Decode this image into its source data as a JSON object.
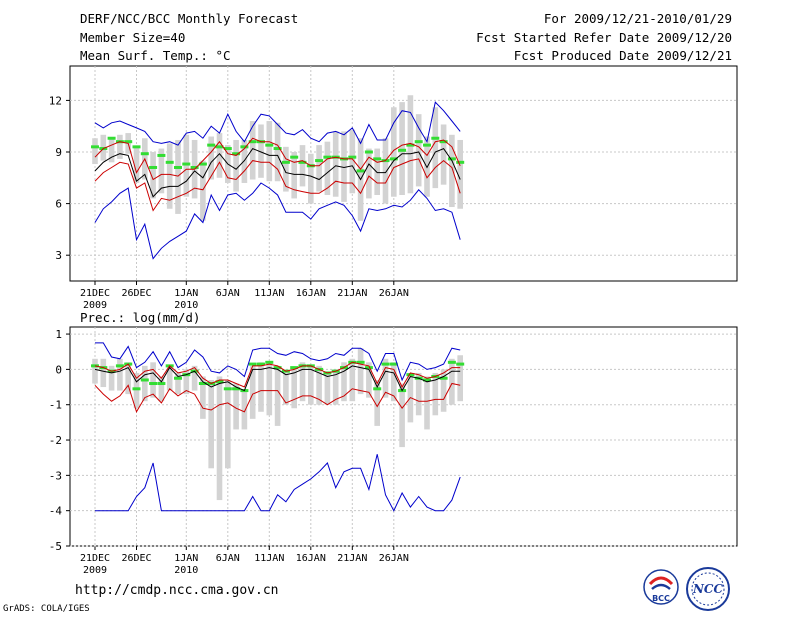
{
  "header": {
    "title": "DERF/NCC/BCC Monthly Forecast",
    "member_size": "Member Size=40",
    "variable_top": "Mean Surf. Temp.: °C",
    "forecast_for": "For 2009/12/21-2010/01/29",
    "started": "Fcst Started Refer Date 2009/12/20",
    "produced": "Fcst Produced Date 2009/12/21"
  },
  "footer": {
    "url": "http://cmdp.ncc.cma.gov.cn",
    "grads": "GrADS: COLA/IGES",
    "logo_bcc": "BCC",
    "logo_ncc": "NCC"
  },
  "colors": {
    "ensemble_max_min": "#0000cc",
    "ensemble_mean": "#000000",
    "ensemble_spread": "#cc0000",
    "member_range_bar": "#d3d3d3",
    "observed": "#33dd33"
  },
  "chart_data": [
    {
      "type": "line",
      "title": "Mean Surf. Temp.: °C",
      "ylim": [
        1.5,
        14
      ],
      "yticks": [
        3,
        6,
        9,
        12
      ],
      "ytick_labels": [
        "3",
        "6",
        "9",
        "12"
      ],
      "xtick_days": [
        0,
        5,
        11,
        16,
        21,
        26,
        31,
        36
      ],
      "xtick_labels": [
        "21DEC",
        "26DEC",
        "1JAN",
        "6JAN",
        "11JAN",
        "16JAN",
        "21JAN",
        "26JAN"
      ],
      "xtick_sublabels": [
        "2009",
        "",
        "2010",
        "",
        "",
        "",
        "",
        ""
      ],
      "series": [
        {
          "name": "max",
          "values": [
            10.7,
            10.4,
            10.7,
            10.8,
            10.6,
            10.4,
            10.2,
            9.6,
            9.5,
            9.6,
            9.4,
            10.1,
            10.2,
            9.8,
            10.5,
            10.1,
            11.2,
            10.2,
            9.6,
            10.5,
            11.2,
            11.1,
            10.6,
            10.1,
            10.0,
            10.3,
            9.8,
            9.6,
            10.1,
            10.2,
            10.0,
            10.4,
            9.5,
            10.6,
            9.7,
            9.7,
            10.7,
            11.4,
            11.3,
            10.4,
            9.6,
            11.9,
            11.4,
            10.8,
            10.2
          ]
        },
        {
          "name": "upper",
          "values": [
            8.7,
            9.2,
            9.4,
            9.6,
            9.5,
            7.8,
            8.6,
            7.4,
            7.7,
            7.7,
            7.6,
            8.0,
            8.0,
            8.5,
            9.0,
            9.6,
            8.9,
            8.8,
            9.2,
            9.8,
            9.6,
            9.6,
            9.4,
            8.6,
            8.4,
            8.5,
            8.2,
            8.2,
            8.6,
            8.7,
            8.6,
            8.6,
            8.0,
            8.7,
            8.4,
            8.5,
            9.1,
            9.4,
            9.5,
            9.3,
            8.8,
            9.6,
            9.7,
            9.3,
            8.2
          ]
        },
        {
          "name": "mean",
          "values": [
            7.9,
            8.4,
            8.7,
            8.9,
            8.8,
            7.3,
            7.7,
            6.4,
            6.9,
            7.0,
            7.0,
            7.3,
            7.9,
            7.5,
            8.4,
            8.9,
            8.3,
            8.0,
            8.5,
            9.2,
            9.0,
            8.8,
            8.8,
            7.8,
            7.7,
            7.7,
            7.6,
            7.4,
            7.8,
            8.2,
            8.1,
            8.2,
            7.4,
            8.3,
            7.8,
            7.8,
            8.5,
            8.9,
            8.9,
            9.0,
            8.1,
            9.0,
            9.2,
            8.5,
            7.4
          ]
        },
        {
          "name": "lower",
          "values": [
            7.3,
            7.8,
            8.1,
            8.4,
            8.3,
            6.9,
            7.2,
            5.6,
            6.3,
            6.2,
            6.4,
            6.6,
            6.9,
            6.8,
            7.6,
            8.4,
            7.5,
            7.4,
            7.9,
            8.5,
            8.4,
            8.4,
            8.0,
            7.0,
            6.8,
            6.7,
            6.6,
            6.6,
            6.9,
            7.3,
            7.2,
            7.2,
            6.6,
            7.6,
            7.2,
            7.2,
            8.1,
            8.3,
            8.5,
            8.6,
            7.5,
            8.1,
            8.5,
            8.1,
            6.6
          ]
        },
        {
          "name": "min",
          "values": [
            4.9,
            5.7,
            6.1,
            6.6,
            6.9,
            3.9,
            4.8,
            2.8,
            3.4,
            3.8,
            4.1,
            4.4,
            5.4,
            4.9,
            6.5,
            5.6,
            6.5,
            6.6,
            6.2,
            6.6,
            7.2,
            6.9,
            6.5,
            5.5,
            5.5,
            5.5,
            5.1,
            5.7,
            5.9,
            6.1,
            5.9,
            5.3,
            4.4,
            5.7,
            5.6,
            5.7,
            5.9,
            5.8,
            6.2,
            6.8,
            6.3,
            5.6,
            5.7,
            5.5,
            3.9
          ]
        }
      ],
      "bars_range": [
        [
          8.3,
          9.8
        ],
        [
          8.5,
          10.0
        ],
        [
          8.4,
          9.8
        ],
        [
          8.6,
          10.0
        ],
        [
          8.9,
          10.1
        ],
        [
          7.2,
          9.3
        ],
        [
          7.4,
          9.8
        ],
        [
          6.3,
          9.0
        ],
        [
          6.6,
          9.2
        ],
        [
          5.7,
          9.5
        ],
        [
          5.4,
          9.7
        ],
        [
          6.4,
          10.0
        ],
        [
          6.3,
          9.7
        ],
        [
          5.0,
          8.5
        ],
        [
          7.4,
          9.9
        ],
        [
          7.5,
          10.1
        ],
        [
          7.2,
          9.4
        ],
        [
          6.7,
          9.7
        ],
        [
          7.2,
          9.7
        ],
        [
          7.4,
          10.8
        ],
        [
          7.5,
          10.6
        ],
        [
          7.3,
          10.8
        ],
        [
          7.3,
          10.7
        ],
        [
          6.7,
          9.3
        ],
        [
          6.3,
          9.0
        ],
        [
          7.0,
          9.4
        ],
        [
          6.0,
          8.9
        ],
        [
          6.7,
          9.4
        ],
        [
          6.5,
          9.6
        ],
        [
          6.4,
          10.2
        ],
        [
          6.1,
          10.2
        ],
        [
          6.6,
          10.3
        ],
        [
          5.0,
          9.8
        ],
        [
          6.3,
          9.2
        ],
        [
          6.5,
          9.2
        ],
        [
          6.0,
          9.8
        ],
        [
          6.4,
          11.6
        ],
        [
          6.5,
          11.9
        ],
        [
          6.6,
          12.3
        ],
        [
          7.0,
          11.2
        ],
        [
          6.4,
          9.9
        ],
        [
          6.9,
          11.6
        ],
        [
          7.1,
          10.6
        ],
        [
          5.8,
          10.0
        ],
        [
          5.7,
          9.7
        ]
      ],
      "observed": [
        9.3,
        9.2,
        9.8,
        9.6,
        9.6,
        9.3,
        8.9,
        8.1,
        8.8,
        8.4,
        8.1,
        8.3,
        8.1,
        8.3,
        9.4,
        9.3,
        9.2,
        8.9,
        9.3,
        9.6,
        9.6,
        9.4,
        9.2,
        8.4,
        8.7,
        8.4,
        8.2,
        8.5,
        8.7,
        8.7,
        8.6,
        8.7,
        7.9,
        9.0,
        8.6,
        8.5,
        8.6,
        9.1,
        9.4,
        9.6,
        9.4,
        9.8,
        9.6,
        8.6,
        8.4
      ]
    },
    {
      "type": "line",
      "title": "Prec.: log(mm/d)",
      "ylim": [
        -5,
        1.2
      ],
      "yticks": [
        -5,
        -4,
        -3,
        -2,
        -1,
        0,
        1
      ],
      "ytick_labels": [
        "-5",
        "-4",
        "-3",
        "-2",
        "-1",
        "0",
        "1"
      ],
      "xtick_days": [
        0,
        5,
        11,
        16,
        21,
        26,
        31,
        36
      ],
      "xtick_labels": [
        "21DEC",
        "26DEC",
        "1JAN",
        "6JAN",
        "11JAN",
        "16JAN",
        "21JAN",
        "26JAN"
      ],
      "xtick_sublabels": [
        "2009",
        "",
        "2010",
        "",
        "",
        "",
        "",
        ""
      ],
      "series": [
        {
          "name": "max",
          "values": [
            0.75,
            0.75,
            0.35,
            0.3,
            0.65,
            0.05,
            0.2,
            0.5,
            0.1,
            0.5,
            0.05,
            0.2,
            0.55,
            0.35,
            -0.05,
            -0.1,
            0.1,
            0.0,
            -0.2,
            0.55,
            0.6,
            0.6,
            0.45,
            0.4,
            0.5,
            0.45,
            0.3,
            0.25,
            0.3,
            0.45,
            0.4,
            0.6,
            0.6,
            0.45,
            -0.05,
            0.45,
            0.45,
            -0.3,
            0.2,
            0.15,
            0.0,
            0.05,
            0.15,
            0.6,
            0.55
          ]
        },
        {
          "name": "upper",
          "values": [
            0.1,
            0.05,
            -0.05,
            0.0,
            0.15,
            -0.25,
            -0.05,
            0.0,
            -0.25,
            0.1,
            -0.1,
            -0.05,
            0.05,
            -0.25,
            -0.4,
            -0.3,
            -0.3,
            -0.4,
            -0.5,
            0.1,
            0.1,
            0.15,
            0.1,
            -0.05,
            0.0,
            0.1,
            0.1,
            0.0,
            -0.1,
            -0.05,
            0.05,
            0.2,
            0.15,
            0.1,
            -0.4,
            0.05,
            0.0,
            -0.5,
            -0.1,
            -0.15,
            -0.25,
            -0.2,
            -0.1,
            0.05,
            0.05
          ]
        },
        {
          "name": "mean",
          "values": [
            0.0,
            -0.05,
            -0.1,
            -0.05,
            0.05,
            -0.35,
            -0.15,
            -0.1,
            -0.35,
            0.05,
            -0.2,
            -0.15,
            -0.05,
            -0.35,
            -0.5,
            -0.4,
            -0.35,
            -0.5,
            -0.6,
            0.0,
            0.0,
            0.05,
            0.0,
            -0.15,
            -0.1,
            0.0,
            0.0,
            -0.1,
            -0.2,
            -0.15,
            -0.05,
            0.1,
            0.05,
            0.0,
            -0.5,
            -0.05,
            -0.1,
            -0.6,
            -0.2,
            -0.25,
            -0.35,
            -0.3,
            -0.2,
            -0.05,
            -0.05
          ]
        },
        {
          "name": "lower",
          "values": [
            -0.45,
            -0.7,
            -0.9,
            -0.75,
            -0.45,
            -1.2,
            -0.8,
            -0.7,
            -0.95,
            -0.55,
            -0.75,
            -0.6,
            -0.7,
            -1.1,
            -1.15,
            -1.0,
            -0.95,
            -1.1,
            -1.2,
            -0.7,
            -0.6,
            -0.6,
            -0.6,
            -0.95,
            -0.85,
            -0.75,
            -0.75,
            -0.85,
            -1.0,
            -0.85,
            -0.75,
            -0.55,
            -0.6,
            -0.65,
            -1.05,
            -0.65,
            -0.75,
            -1.1,
            -0.8,
            -0.9,
            -0.9,
            -0.85,
            -0.85,
            -0.4,
            -0.45
          ]
        },
        {
          "name": "min",
          "values": [
            -4,
            -4,
            -4,
            -4,
            -4,
            -3.6,
            -3.35,
            -2.65,
            -4,
            -4,
            -4,
            -4,
            -4,
            -4,
            -4,
            -4,
            -4,
            -4,
            -4,
            -3.6,
            -4,
            -4,
            -3.55,
            -3.75,
            -3.4,
            -3.25,
            -3.1,
            -2.9,
            -2.65,
            -3.35,
            -2.9,
            -2.8,
            -2.8,
            -3.4,
            -2.4,
            -3.55,
            -4,
            -3.5,
            -3.9,
            -3.6,
            -3.9,
            -4,
            -4,
            -3.7,
            -3.05
          ]
        }
      ],
      "bars_range": [
        [
          -0.4,
          0.3
        ],
        [
          -0.5,
          0.3
        ],
        [
          -0.6,
          0.1
        ],
        [
          -0.6,
          0.3
        ],
        [
          -0.7,
          0.2
        ],
        [
          -1.1,
          -0.1
        ],
        [
          -0.9,
          0.1
        ],
        [
          -0.8,
          0.2
        ],
        [
          -0.9,
          -0.2
        ],
        [
          -0.6,
          0.1
        ],
        [
          -0.7,
          -0.1
        ],
        [
          -0.7,
          0.0
        ],
        [
          -0.6,
          0.1
        ],
        [
          -1.4,
          -0.2
        ],
        [
          -2.8,
          -0.3
        ],
        [
          -3.7,
          -0.2
        ],
        [
          -2.8,
          -0.3
        ],
        [
          -1.7,
          -0.4
        ],
        [
          -1.7,
          -0.6
        ],
        [
          -1.4,
          0.1
        ],
        [
          -1.2,
          0.2
        ],
        [
          -1.3,
          0.2
        ],
        [
          -1.6,
          0.1
        ],
        [
          -1.0,
          -0.1
        ],
        [
          -1.1,
          0.0
        ],
        [
          -0.9,
          0.2
        ],
        [
          -1.0,
          0.1
        ],
        [
          -1.0,
          0.1
        ],
        [
          -1.0,
          -0.1
        ],
        [
          -1.0,
          0.0
        ],
        [
          -0.9,
          0.2
        ],
        [
          -0.9,
          0.3
        ],
        [
          -0.7,
          0.6
        ],
        [
          -0.8,
          0.2
        ],
        [
          -1.6,
          -0.3
        ],
        [
          -0.8,
          0.3
        ],
        [
          -0.9,
          0.2
        ],
        [
          -2.2,
          -0.4
        ],
        [
          -1.5,
          -0.1
        ],
        [
          -1.3,
          -0.1
        ],
        [
          -1.7,
          -0.2
        ],
        [
          -1.3,
          -0.1
        ],
        [
          -1.2,
          0.0
        ],
        [
          -1.0,
          0.3
        ],
        [
          -0.9,
          0.4
        ]
      ],
      "observed": [
        0.1,
        0.05,
        -0.05,
        0.1,
        0.15,
        -0.55,
        -0.3,
        -0.4,
        -0.4,
        0.1,
        -0.25,
        -0.15,
        -0.05,
        -0.4,
        -0.4,
        -0.35,
        -0.55,
        -0.55,
        -0.6,
        0.15,
        0.15,
        0.2,
        0.05,
        -0.05,
        0.05,
        0.1,
        0.1,
        0.0,
        -0.1,
        -0.05,
        0.05,
        0.2,
        0.2,
        0.05,
        -0.55,
        0.15,
        0.15,
        -0.6,
        -0.15,
        -0.25,
        -0.3,
        -0.2,
        -0.25,
        0.2,
        0.15
      ]
    }
  ]
}
